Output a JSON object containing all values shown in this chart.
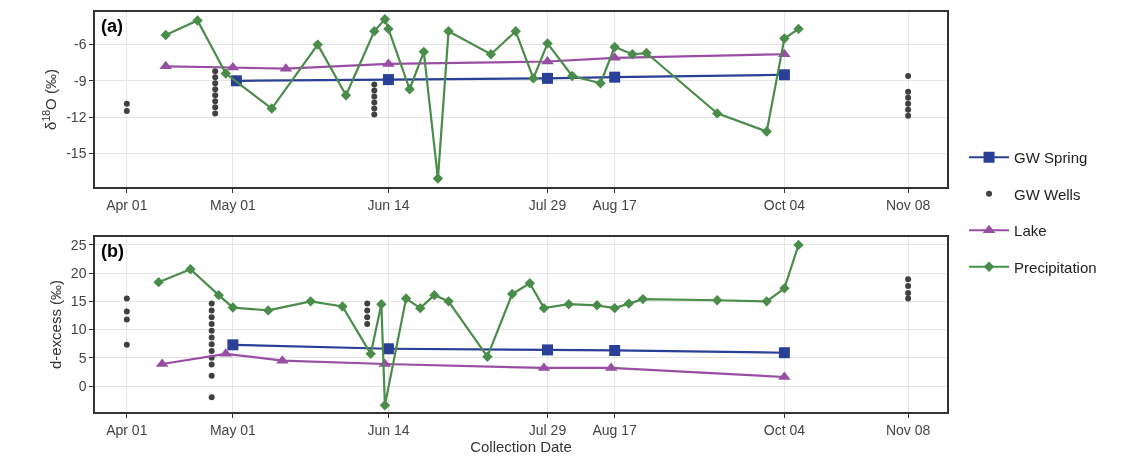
{
  "chart_data": [
    {
      "type": "line",
      "title": "(a)",
      "ylabel": "δ$^{18}$O (‰)",
      "xlim": [
        "--03-23",
        "--11-19"
      ],
      "ylim": [
        -17.8,
        -3.3
      ],
      "yticks": [
        -6,
        -9,
        -12,
        -15
      ],
      "xticks": [
        {
          "value": "--04-01",
          "label": "Apr 01"
        },
        {
          "value": "--05-01",
          "label": "May 01"
        },
        {
          "value": "--06-14",
          "label": "Jun 14"
        },
        {
          "value": "--07-29",
          "label": "Jul 29"
        },
        {
          "value": "--08-17",
          "label": "Aug 17"
        },
        {
          "value": "--10-04",
          "label": "Oct 04"
        },
        {
          "value": "--11-08",
          "label": "Nov 08"
        }
      ],
      "grid": true,
      "legend": "right",
      "series": [
        {
          "name": "GW Spring",
          "color": "#2a3f97",
          "marker": "square",
          "x": [
            "--05-02",
            "--06-14",
            "--07-29",
            "--08-17",
            "--10-04"
          ],
          "values": [
            -9.0,
            -8.9,
            -8.8,
            -8.7,
            -8.5
          ]
        },
        {
          "name": "GW Wells",
          "type": "scatter",
          "color": "#404040",
          "marker": "circle",
          "x": [
            "--04-01",
            "--04-01",
            "--04-26",
            "--04-26",
            "--04-26",
            "--04-26",
            "--04-26",
            "--04-26",
            "--04-26",
            "--04-26",
            "--06-10",
            "--06-10",
            "--06-10",
            "--06-10",
            "--06-10",
            "--06-10",
            "--11-08",
            "--11-08",
            "--11-08",
            "--11-08",
            "--11-08",
            "--11-08"
          ],
          "values": [
            -10.9,
            -11.5,
            -8.2,
            -8.7,
            -9.2,
            -9.7,
            -10.2,
            -10.7,
            -11.2,
            -11.7,
            -9.3,
            -9.8,
            -10.3,
            -10.8,
            -11.3,
            -11.8,
            -8.6,
            -9.9,
            -10.4,
            -10.9,
            -11.4,
            -11.9
          ]
        },
        {
          "name": "Lake",
          "color": "#984ea3",
          "marker": "triangle",
          "x": [
            "--04-12",
            "--05-01",
            "--05-16",
            "--06-14",
            "--07-29",
            "--08-17",
            "--10-04"
          ],
          "values": [
            -7.8,
            -7.9,
            -8.0,
            -7.6,
            -7.4,
            -7.1,
            -6.8
          ]
        },
        {
          "name": "Precipitation",
          "color": "#4a8c4a",
          "marker": "diamond",
          "x": [
            "--04-12",
            "--04-21",
            "--04-29",
            "--05-12",
            "--05-25",
            "--06-02",
            "--06-10",
            "--06-13",
            "--06-14",
            "--06-20",
            "--06-24",
            "--06-28",
            "--07-01",
            "--07-13",
            "--07-20",
            "--07-25",
            "--07-29",
            "--08-05",
            "--08-13",
            "--08-17",
            "--08-22",
            "--08-26",
            "--09-15",
            "--09-29",
            "--10-04",
            "--10-08"
          ],
          "values": [
            -5.2,
            -4.0,
            -8.4,
            -11.3,
            -6.0,
            -10.2,
            -4.9,
            -3.9,
            -4.7,
            -9.7,
            -6.6,
            -17.1,
            -4.9,
            -6.8,
            -4.9,
            -8.8,
            -5.9,
            -8.6,
            -9.2,
            -6.2,
            -6.8,
            -6.7,
            -11.7,
            -13.2,
            -5.5,
            -4.7
          ]
        }
      ]
    },
    {
      "type": "line",
      "title": "(b)",
      "ylabel": "d-excess (‰)",
      "xlabel": "Collection Date",
      "xlim": [
        "--03-23",
        "--11-19"
      ],
      "ylim": [
        -4.6,
        26.4
      ],
      "yticks": [
        0,
        5,
        10,
        15,
        20,
        25
      ],
      "xticks": [
        {
          "value": "--04-01",
          "label": "Apr 01"
        },
        {
          "value": "--05-01",
          "label": "May 01"
        },
        {
          "value": "--06-14",
          "label": "Jun 14"
        },
        {
          "value": "--07-29",
          "label": "Jul 29"
        },
        {
          "value": "--08-17",
          "label": "Aug 17"
        },
        {
          "value": "--10-04",
          "label": "Oct 04"
        },
        {
          "value": "--11-08",
          "label": "Nov 08"
        }
      ],
      "grid": true,
      "series": [
        {
          "name": "GW Spring",
          "color": "#2a3f97",
          "marker": "square",
          "x": [
            "--05-01",
            "--06-14",
            "--07-29",
            "--08-17",
            "--10-04"
          ],
          "values": [
            7.3,
            6.6,
            6.4,
            6.3,
            5.9
          ]
        },
        {
          "name": "GW Wells",
          "type": "scatter",
          "color": "#404040",
          "marker": "circle",
          "x": [
            "--04-01",
            "--04-01",
            "--04-01",
            "--04-01",
            "--04-25",
            "--04-25",
            "--04-25",
            "--04-25",
            "--04-25",
            "--04-25",
            "--04-25",
            "--04-25",
            "--04-25",
            "--04-25",
            "--04-25",
            "--04-25",
            "--06-08",
            "--06-08",
            "--06-08",
            "--06-08",
            "--11-08",
            "--11-08",
            "--11-08",
            "--11-08"
          ],
          "values": [
            15.5,
            13.2,
            11.8,
            7.3,
            14.6,
            13.4,
            12.2,
            11.0,
            9.8,
            8.6,
            7.4,
            6.2,
            5.0,
            3.8,
            1.8,
            -2.0,
            14.6,
            13.4,
            12.2,
            11.0,
            18.9,
            17.7,
            16.5,
            15.5
          ]
        },
        {
          "name": "Lake",
          "color": "#984ea3",
          "marker": "triangle",
          "x": [
            "--04-11",
            "--04-29",
            "--05-15",
            "--06-13",
            "--07-28",
            "--08-16",
            "--10-04"
          ],
          "values": [
            3.9,
            5.7,
            4.5,
            3.9,
            3.2,
            3.2,
            1.6
          ]
        },
        {
          "name": "Precipitation",
          "color": "#4a8c4a",
          "marker": "diamond",
          "x": [
            "--04-10",
            "--04-19",
            "--04-27",
            "--05-01",
            "--05-11",
            "--05-23",
            "--06-01",
            "--06-09",
            "--06-12",
            "--06-13",
            "--06-19",
            "--06-23",
            "--06-27",
            "--07-01",
            "--07-12",
            "--07-19",
            "--07-24",
            "--07-28",
            "--08-04",
            "--08-12",
            "--08-17",
            "--08-21",
            "--08-25",
            "--09-15",
            "--09-29",
            "--10-04",
            "--10-08"
          ],
          "values": [
            18.4,
            20.7,
            16.1,
            13.9,
            13.4,
            15.0,
            14.1,
            5.7,
            14.5,
            -3.4,
            15.5,
            13.8,
            16.1,
            15.0,
            5.2,
            16.3,
            18.2,
            13.8,
            14.5,
            14.3,
            13.8,
            14.6,
            15.4,
            15.2,
            15.0,
            17.3,
            25.0
          ]
        }
      ]
    }
  ]
}
